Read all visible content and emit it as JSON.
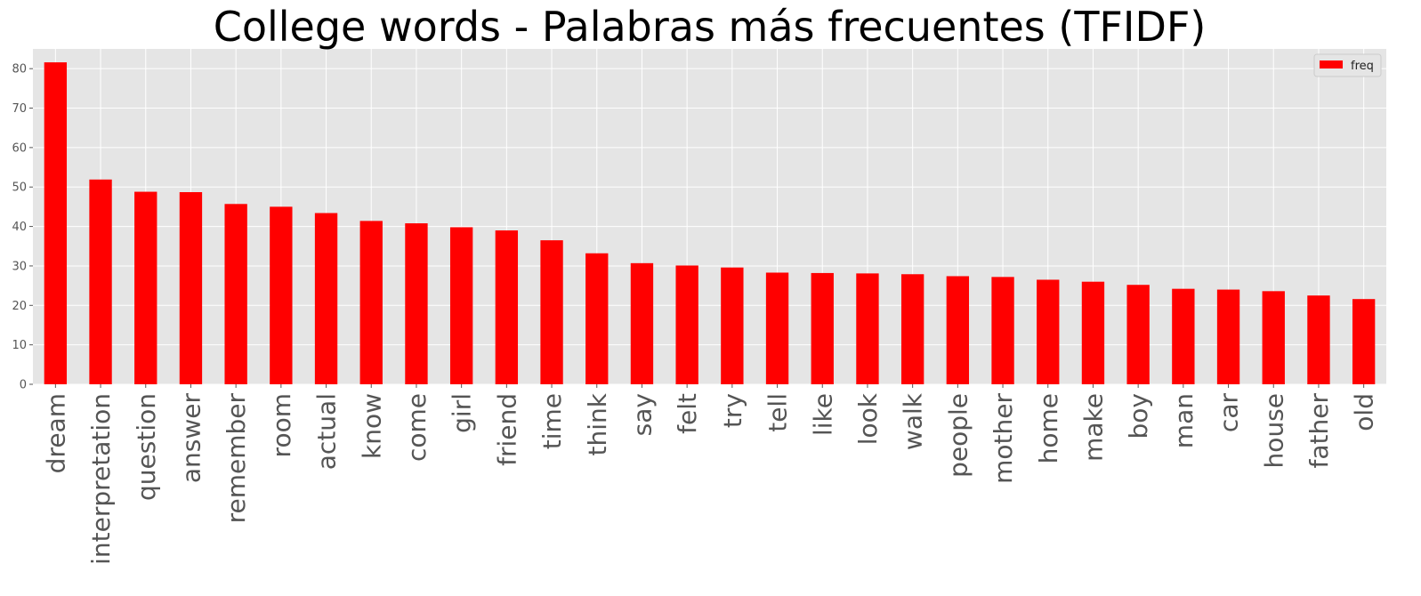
{
  "chart_data": {
    "type": "bar",
    "title": "College words - Palabras más frecuentes (TFIDF)",
    "xlabel": "",
    "ylabel": "",
    "categories": [
      "dream",
      "interpretation",
      "question",
      "answer",
      "remember",
      "room",
      "actual",
      "know",
      "come",
      "girl",
      "friend",
      "time",
      "think",
      "say",
      "felt",
      "try",
      "tell",
      "like",
      "look",
      "walk",
      "people",
      "mother",
      "home",
      "make",
      "boy",
      "man",
      "car",
      "house",
      "father",
      "old"
    ],
    "series": [
      {
        "name": "freq",
        "color": "#ff0000",
        "values": [
          81.6,
          51.9,
          48.8,
          48.7,
          45.7,
          45.0,
          43.4,
          41.4,
          40.8,
          39.8,
          39.0,
          36.5,
          33.2,
          30.7,
          30.1,
          29.6,
          28.3,
          28.2,
          28.1,
          27.9,
          27.4,
          27.2,
          26.5,
          26.0,
          25.2,
          24.2,
          24.0,
          23.6,
          22.5,
          21.6
        ]
      }
    ],
    "ylim": [
      0,
      85
    ],
    "yticks": [
      0,
      10,
      20,
      30,
      40,
      50,
      60,
      70,
      80
    ],
    "grid": true,
    "legend": "top-right",
    "plot_background": "#e5e5e5",
    "grid_color": "#ffffff"
  }
}
